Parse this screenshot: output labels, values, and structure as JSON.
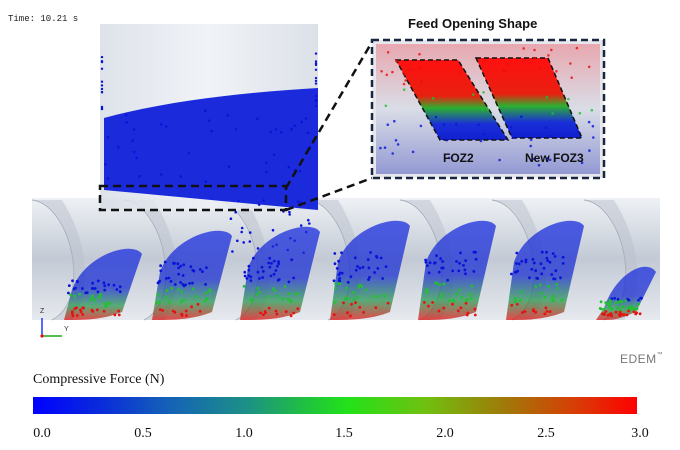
{
  "time_label": "Time:  10.21 s",
  "inset": {
    "title": "Feed Opening Shape",
    "label_left": "FOZ2",
    "label_right": "New FOZ3"
  },
  "logo": {
    "text": "EDEM",
    "trademark": "™"
  },
  "axes": {
    "z": "Z",
    "y": "Y"
  },
  "legend": {
    "title": "Compressive Force (N)",
    "ticks": [
      "0.0",
      "0.5",
      "1.0",
      "1.5",
      "2.0",
      "2.5",
      "3.0"
    ],
    "min_color": "#0000ff",
    "mid_color": "#22e21a",
    "max_color": "#ff0000"
  },
  "colors": {
    "particle_low": "#0a14d8",
    "particle_mid": "#22c030",
    "particle_high": "#e81010",
    "screw": "#c8ced8"
  }
}
